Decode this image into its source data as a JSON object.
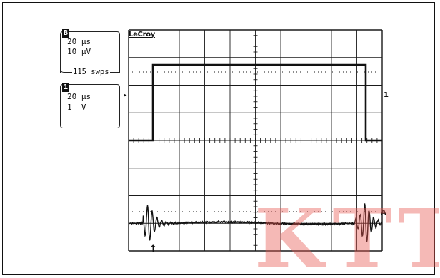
{
  "brand": "LeCroy",
  "channel_a": {
    "badge": "B",
    "timebase": "20 μs",
    "volts": "10 μV",
    "sweeps": "115 swps"
  },
  "channel_1": {
    "badge": "1",
    "timebase": "20 μs",
    "volts": "1  V"
  },
  "markers": {
    "trigger_level": "▸",
    "right_channel_1": "1",
    "right_channel_a": "A",
    "trigger_position": "↑"
  },
  "watermark": "KTT",
  "colors": {
    "trace": "#111111",
    "grid": "#1a1a1a",
    "watermark": "#e85852"
  }
}
